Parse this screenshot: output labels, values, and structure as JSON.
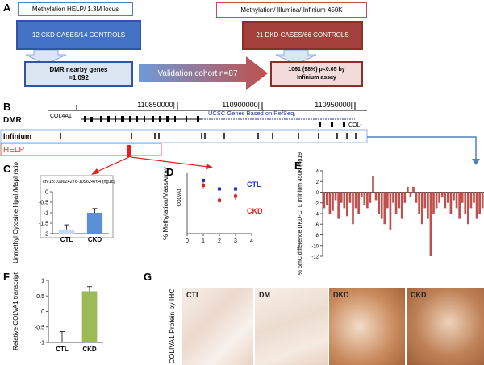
{
  "panel_labels": [
    "A",
    "B",
    "C",
    "D",
    "E",
    "F",
    "G"
  ],
  "panel_a": {
    "left_header": "Methylation HELP/ 1.3M locus",
    "left_cohort": "12 CKD CASES/14 CONTROLS",
    "left_result": "DMR nearby genes =1,092",
    "arrow": "Validation cohort n=87",
    "right_header": "Methylation/ Illumina/ Infinium 450K",
    "right_cohort": "21 DKD CASES/66 CONTROLS",
    "right_result": "1061 (98%) p<0.05 by Infinium assay"
  },
  "panel_b": {
    "positions": [
      "110850000|",
      "110900000|",
      "110950000|"
    ],
    "track_title": "UCSC Genes Based on RefSeq,",
    "gene": "COL4A1",
    "gene_right": "COL-",
    "track_label": "DMR",
    "infinium": "Infinium",
    "help": "HELP"
  },
  "panel_g": {
    "y_label": "COLIVA1 Protein by IHC",
    "images": [
      "CTL",
      "DM",
      "DKD",
      "CKD"
    ]
  },
  "chart_data": [
    {
      "type": "bar",
      "title": "chr13:109624276-109624764 (hg18)",
      "y_label": "Unmethyl Cytosine HpaII/MspI ratio",
      "categories": [
        "CTL",
        "CKD"
      ],
      "values": [
        -1.8,
        -1.0
      ],
      "errors": [
        0.22,
        0.2
      ],
      "colors": [
        "#c5d9f1",
        "#5b8fd6"
      ],
      "ylim": [
        -2,
        0
      ],
      "yticks": [
        -2,
        -1.5,
        -1,
        -0.5,
        0
      ]
    },
    {
      "type": "scatter",
      "y_label": "% Methylation/MassArray",
      "gene_label": "COLVA1",
      "x": [
        1,
        2,
        3
      ],
      "series": [
        {
          "name": "CTL",
          "color": "#2233cc",
          "values": [
            0.88,
            0.74,
            0.74
          ],
          "errors": [
            0.03,
            0.02,
            0.03
          ]
        },
        {
          "name": "CKD",
          "color": "#dd2222",
          "values": [
            0.8,
            0.55,
            0.62
          ],
          "errors": [
            0.05,
            0.04,
            0.06
          ]
        }
      ],
      "xlim": [
        0,
        4
      ],
      "xticks": [
        0,
        1,
        2,
        3,
        4
      ],
      "ylim": [
        0,
        1
      ]
    },
    {
      "type": "bar",
      "y_label": "% 5mC difference  DKD-CTL Infinium 450K (hg19",
      "categories": [
        null,
        null,
        null,
        null,
        null,
        null,
        null,
        null,
        null,
        null,
        null,
        null,
        null,
        null,
        null,
        null,
        null,
        null,
        null,
        null,
        null,
        null,
        null,
        null,
        null,
        null,
        null,
        null,
        null,
        null,
        null,
        null,
        null,
        null,
        null,
        null,
        null,
        null,
        null,
        null,
        null,
        null,
        null,
        null,
        null,
        null,
        null,
        null,
        null,
        null,
        null,
        null,
        null,
        null,
        null,
        null
      ],
      "values": [
        -3,
        -2.5,
        -4,
        -3.5,
        -1.5,
        -5,
        -2,
        -3,
        -4.5,
        -2,
        -6,
        -3,
        -4,
        -1,
        -2.5,
        -3,
        -2,
        3,
        -1.5,
        -4,
        -5,
        -6,
        -3,
        -7,
        -2,
        -4,
        -3,
        -5,
        -2,
        1,
        -1,
        1,
        -2,
        -4,
        -6,
        -3,
        -5,
        -12,
        -4,
        -3,
        -2,
        -1,
        -3,
        -2,
        -4,
        -1.5,
        -3,
        -5,
        -2,
        -4,
        -6,
        -3,
        -2,
        -5,
        -4,
        -3
      ],
      "color": "#c0504d",
      "ylim": [
        -12,
        4
      ],
      "yticks": [
        4,
        2,
        0,
        -2,
        -4,
        -6,
        -8,
        -10,
        -12
      ]
    },
    {
      "type": "bar",
      "y_label": "Relative COLVA1 transcript",
      "categories": [
        "CTL",
        "CKD"
      ],
      "values": [
        -1,
        0.65
      ],
      "errors": [
        0.35,
        0.15
      ],
      "colors": [
        "#c5d9f1",
        "#9bbb59"
      ],
      "ylim": [
        -1,
        1
      ],
      "yticks": [
        -1,
        -0.5,
        0,
        0.5,
        1
      ]
    }
  ]
}
